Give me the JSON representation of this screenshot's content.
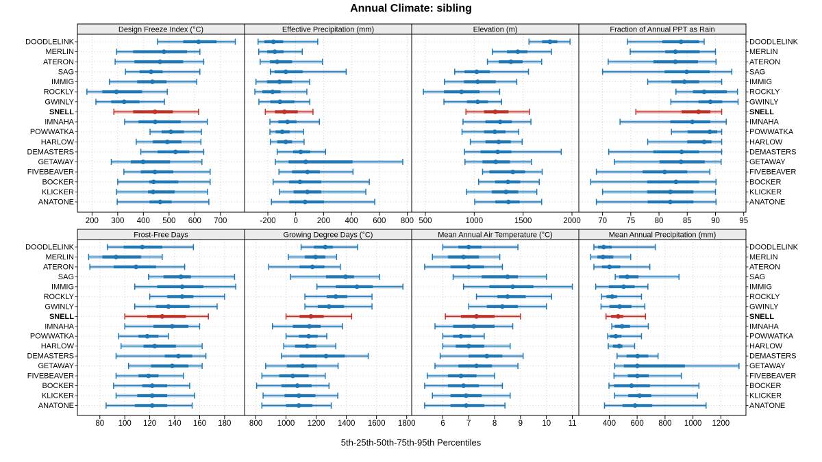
{
  "colors": {
    "blue": "#1f77b4",
    "blue_band": "#1f77b4",
    "red": "#bf3228",
    "grid_line": "#cccccc",
    "panel_border": "#000000",
    "header_bg": "#ececec",
    "text": "#000000"
  },
  "chart_data": {
    "type": "percentile-dot-whisker",
    "title": "Annual Climate: sibling",
    "caption": "5th-25th-50th-75th-95th Percentiles",
    "percentiles": [
      5,
      25,
      50,
      75,
      95
    ],
    "legend_position": "none",
    "grid": "dotted",
    "layout": {
      "rows": 2,
      "cols": 4
    },
    "highlight_station": "SNELL",
    "stations": [
      "DOODLELINK",
      "MERLIN",
      "ATERON",
      "SAG",
      "IMMIG",
      "ROCKLY",
      "GWINLY",
      "SNELL",
      "IMNAHA",
      "POWWATKA",
      "HARLOW",
      "DEMASTERS",
      "GETAWAY",
      "FIVEBEAVER",
      "BOCKER",
      "KLICKER",
      "ANATONE"
    ],
    "panels": [
      {
        "title": "Design Freeze Index (°C)",
        "grid_row": 0,
        "grid_col": 0,
        "xlim": [
          143,
          794
        ],
        "ticks": [
          200,
          300,
          400,
          500,
          600,
          700
        ],
        "values": [
          [
            455,
            555,
            615,
            685,
            758
          ],
          [
            295,
            360,
            480,
            570,
            620
          ],
          [
            290,
            365,
            465,
            555,
            635
          ],
          [
            330,
            385,
            430,
            475,
            620
          ],
          [
            268,
            376,
            435,
            490,
            608
          ],
          [
            180,
            240,
            295,
            395,
            493
          ],
          [
            215,
            275,
            325,
            385,
            482
          ],
          [
            285,
            360,
            445,
            515,
            615
          ],
          [
            327,
            381,
            446,
            545,
            649
          ],
          [
            426,
            471,
            507,
            558,
            626
          ],
          [
            372,
            437,
            493,
            548,
            624
          ],
          [
            390,
            455,
            525,
            579,
            635
          ],
          [
            275,
            351,
            399,
            504,
            628
          ],
          [
            324,
            390,
            445,
            516,
            660
          ],
          [
            300,
            423,
            440,
            536,
            660
          ],
          [
            295,
            418,
            438,
            522,
            650
          ],
          [
            298,
            424,
            465,
            510,
            655
          ]
        ]
      },
      {
        "title": "Effective Precipitation (mm)",
        "grid_row": 0,
        "grid_col": 1,
        "xlim": [
          -367,
          832
        ],
        "ticks": [
          -200,
          0,
          200,
          400,
          600,
          800
        ],
        "values": [
          [
            -270,
            -225,
            -160,
            -90,
            158
          ],
          [
            -265,
            -205,
            -150,
            -87,
            47
          ],
          [
            -255,
            -185,
            -133,
            -26,
            192
          ],
          [
            -182,
            -152,
            -71,
            51,
            362
          ],
          [
            -285,
            -206,
            -116,
            -26,
            100
          ],
          [
            -293,
            -239,
            -166,
            -108,
            80
          ],
          [
            -264,
            -182,
            -113,
            -10,
            101
          ],
          [
            -218,
            -149,
            -81,
            15,
            124
          ],
          [
            -185,
            -125,
            -59,
            6,
            170
          ],
          [
            -185,
            -144,
            -97,
            -43,
            56
          ],
          [
            -182,
            -133,
            -71,
            -26,
            60
          ],
          [
            -133,
            -18,
            36,
            105,
            214
          ],
          [
            -146,
            -51,
            72,
            408,
            768
          ],
          [
            -120,
            -26,
            84,
            174,
            411
          ],
          [
            -162,
            -48,
            31,
            183,
            528
          ],
          [
            -116,
            -15,
            84,
            183,
            503
          ],
          [
            -174,
            -46,
            67,
            203,
            567
          ]
        ]
      },
      {
        "title": "Elevation (m)",
        "grid_row": 0,
        "grid_col": 2,
        "xlim": [
          360,
          2070
        ],
        "ticks": [
          500,
          1000,
          1500,
          2000
        ],
        "values": [
          [
            1560,
            1695,
            1775,
            1850,
            1980
          ],
          [
            1185,
            1335,
            1445,
            1545,
            1790
          ],
          [
            1135,
            1250,
            1375,
            1495,
            1690
          ],
          [
            800,
            900,
            1025,
            1160,
            1555
          ],
          [
            695,
            895,
            1035,
            1220,
            1435
          ],
          [
            480,
            690,
            870,
            1055,
            1260
          ],
          [
            690,
            925,
            1035,
            1140,
            1280
          ],
          [
            915,
            1100,
            1215,
            1350,
            1565
          ],
          [
            885,
            1115,
            1265,
            1385,
            1580
          ],
          [
            875,
            1100,
            1210,
            1320,
            1455
          ],
          [
            960,
            1115,
            1250,
            1375,
            1490
          ],
          [
            900,
            1065,
            1240,
            1380,
            1890
          ],
          [
            905,
            1085,
            1220,
            1365,
            1585
          ],
          [
            1085,
            1155,
            1395,
            1520,
            1695
          ],
          [
            1045,
            1215,
            1345,
            1470,
            1665
          ],
          [
            920,
            1180,
            1325,
            1450,
            1640
          ],
          [
            1005,
            1215,
            1350,
            1465,
            1690
          ]
        ]
      },
      {
        "title": "Fraction of Annual PPT as Rain",
        "grid_row": 0,
        "grid_col": 3,
        "xlim": [
          65.8,
          95.4
        ],
        "ticks": [
          70,
          75,
          80,
          85,
          90,
          95
        ],
        "values": [
          [
            74.4,
            80.6,
            83.9,
            87.1,
            88.0
          ],
          [
            74.9,
            81.1,
            82.9,
            87.2,
            90.0
          ],
          [
            71.0,
            79.0,
            82.9,
            86.9,
            90.1
          ],
          [
            70.0,
            81.0,
            84.9,
            89.0,
            92.9
          ],
          [
            78.0,
            82.2,
            84.5,
            87.1,
            91.1
          ],
          [
            83.0,
            86.0,
            88.0,
            92.0,
            93.9
          ],
          [
            82.1,
            87.0,
            89.1,
            91.2,
            94.0
          ],
          [
            75.9,
            84.0,
            87.0,
            89.1,
            91.1
          ],
          [
            73.1,
            82.0,
            85.9,
            89.1,
            91.9
          ],
          [
            82.2,
            85.1,
            89.0,
            90.3,
            91.1
          ],
          [
            78.0,
            85.0,
            88.0,
            89.3,
            91.1
          ],
          [
            71.1,
            79.0,
            84.0,
            87.1,
            91.1
          ],
          [
            72.1,
            80.1,
            83.9,
            88.1,
            91.0
          ],
          [
            68.9,
            77.1,
            81.0,
            85.0,
            89.0
          ],
          [
            67.9,
            77.9,
            83.0,
            87.1,
            90.1
          ],
          [
            70.0,
            77.9,
            82.0,
            86.1,
            90.0
          ],
          [
            68.9,
            78.0,
            82.0,
            86.1,
            90.1
          ]
        ]
      },
      {
        "title": "Frost-Free Days",
        "grid_row": 1,
        "grid_col": 0,
        "xlim": [
          62,
          196
        ],
        "ticks": [
          80,
          100,
          120,
          140,
          160,
          180
        ],
        "values": [
          [
            86,
            99,
            114,
            130,
            155
          ],
          [
            71,
            82,
            93,
            113,
            130
          ],
          [
            72,
            91,
            109,
            125,
            148
          ],
          [
            119,
            131,
            145,
            153,
            188
          ],
          [
            108,
            126,
            146,
            163,
            189
          ],
          [
            120,
            134,
            146,
            155,
            180
          ],
          [
            108,
            125,
            135,
            152,
            174
          ],
          [
            100,
            118,
            130,
            149,
            167
          ],
          [
            100,
            123,
            138,
            151,
            160
          ],
          [
            95,
            111,
            118,
            127,
            135
          ],
          [
            97,
            115,
            124,
            141,
            162
          ],
          [
            93,
            132,
            143,
            154,
            165
          ],
          [
            103,
            121,
            138,
            151,
            162
          ],
          [
            93,
            111,
            119,
            127,
            147
          ],
          [
            91,
            114,
            122,
            134,
            152
          ],
          [
            93,
            110,
            122,
            134,
            156
          ],
          [
            85,
            108,
            122,
            134,
            154
          ]
        ]
      },
      {
        "title": "Growing Degree Days (°C)",
        "grid_row": 1,
        "grid_col": 1,
        "xlim": [
          725,
          1833
        ],
        "ticks": [
          800,
          1000,
          1200,
          1400,
          1600,
          1800
        ],
        "values": [
          [
            1100,
            1185,
            1260,
            1310,
            1475
          ],
          [
            1015,
            1125,
            1195,
            1260,
            1335
          ],
          [
            885,
            1090,
            1175,
            1255,
            1360
          ],
          [
            1030,
            1265,
            1395,
            1450,
            1620
          ],
          [
            1205,
            1330,
            1470,
            1575,
            1775
          ],
          [
            1125,
            1270,
            1330,
            1405,
            1570
          ],
          [
            1125,
            1210,
            1285,
            1385,
            1570
          ],
          [
            1000,
            1090,
            1165,
            1250,
            1435
          ],
          [
            910,
            1045,
            1155,
            1230,
            1375
          ],
          [
            1000,
            1085,
            1150,
            1210,
            1270
          ],
          [
            985,
            1060,
            1140,
            1200,
            1330
          ],
          [
            970,
            1090,
            1265,
            1390,
            1545
          ],
          [
            865,
            1005,
            1110,
            1205,
            1345
          ],
          [
            840,
            955,
            1045,
            1150,
            1260
          ],
          [
            805,
            970,
            1075,
            1170,
            1285
          ],
          [
            848,
            990,
            1085,
            1195,
            1343
          ],
          [
            840,
            1000,
            1085,
            1175,
            1300
          ]
        ]
      },
      {
        "title": "Mean Annual Air Temperature (°C)",
        "grid_row": 1,
        "grid_col": 2,
        "xlim": [
          4.8,
          11.25
        ],
        "ticks": [
          6,
          7,
          8,
          9,
          10,
          11
        ],
        "values": [
          [
            6.0,
            6.6,
            7.0,
            7.5,
            8.9
          ],
          [
            5.6,
            6.2,
            6.8,
            7.4,
            8.2
          ],
          [
            5.3,
            6.3,
            7.0,
            7.6,
            8.3
          ],
          [
            6.4,
            7.5,
            8.5,
            8.9,
            10.0
          ],
          [
            6.8,
            7.8,
            8.7,
            9.5,
            11.0
          ],
          [
            7.3,
            8.1,
            8.5,
            9.2,
            10.2
          ],
          [
            7.0,
            7.7,
            8.3,
            8.9,
            10.0
          ],
          [
            6.1,
            6.7,
            7.3,
            8.0,
            9.0
          ],
          [
            5.7,
            6.4,
            7.2,
            8.0,
            8.7
          ],
          [
            6.0,
            6.4,
            6.7,
            7.1,
            7.6
          ],
          [
            6.0,
            6.5,
            7.0,
            7.6,
            8.6
          ],
          [
            5.9,
            7.0,
            7.7,
            8.3,
            9.1
          ],
          [
            5.7,
            6.6,
            7.3,
            7.9,
            8.9
          ],
          [
            5.4,
            6.2,
            6.7,
            7.3,
            8.0
          ],
          [
            5.3,
            6.2,
            6.8,
            7.4,
            8.3
          ],
          [
            5.6,
            6.3,
            6.9,
            7.5,
            8.6
          ],
          [
            5.3,
            6.3,
            6.9,
            7.6,
            8.4
          ]
        ]
      },
      {
        "title": "Mean Annual Precipitation (mm)",
        "grid_row": 1,
        "grid_col": 3,
        "xlim": [
          182,
          1380
        ],
        "ticks": [
          400,
          600,
          800,
          1000,
          1200
        ],
        "values": [
          [
            290,
            320,
            360,
            418,
            730
          ],
          [
            267,
            315,
            356,
            429,
            554
          ],
          [
            290,
            348,
            402,
            479,
            691
          ],
          [
            443,
            472,
            529,
            610,
            900
          ],
          [
            303,
            397,
            503,
            582,
            677
          ],
          [
            344,
            380,
            421,
            456,
            631
          ],
          [
            341,
            402,
            475,
            560,
            655
          ],
          [
            377,
            413,
            464,
            500,
            660
          ],
          [
            418,
            439,
            492,
            549,
            680
          ],
          [
            389,
            407,
            447,
            488,
            631
          ],
          [
            393,
            426,
            472,
            495,
            582
          ],
          [
            456,
            524,
            603,
            680,
            750
          ],
          [
            439,
            505,
            601,
            942,
            1330
          ],
          [
            434,
            533,
            601,
            683,
            917
          ],
          [
            398,
            434,
            560,
            691,
            1043
          ],
          [
            438,
            536,
            618,
            701,
            1032
          ],
          [
            366,
            495,
            585,
            708,
            1094
          ]
        ]
      }
    ]
  }
}
